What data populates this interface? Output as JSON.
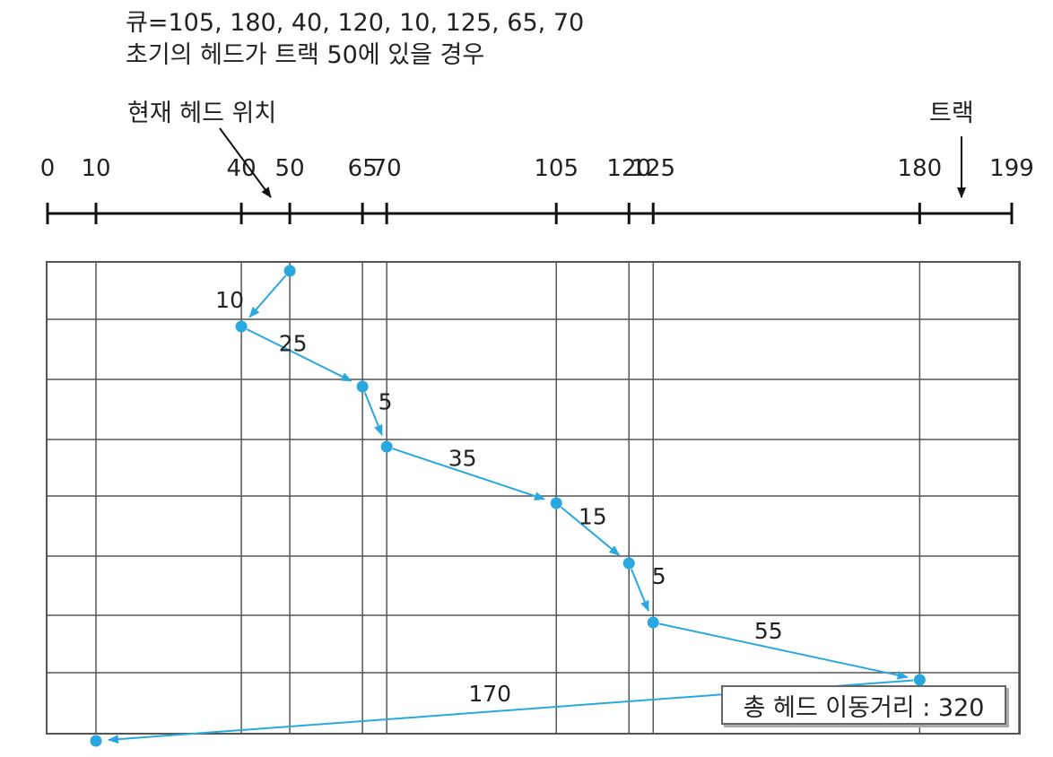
{
  "header": {
    "queue_text": "큐=105, 180, 40, 120, 10, 125, 65, 70",
    "initial_text": "초기의 헤드가 트랙 50에 있을 경우"
  },
  "labels": {
    "current_head": "현재 헤드 위치",
    "track": "트랙"
  },
  "track_axis": {
    "ticks": [
      0,
      10,
      40,
      50,
      65,
      70,
      105,
      120,
      125,
      180,
      199
    ],
    "tick_labels": [
      "0",
      "10",
      "40",
      "50",
      "65",
      "70",
      "105",
      "120",
      "125",
      "180",
      "199"
    ],
    "min": 0,
    "max": 199
  },
  "head_path": [
    50,
    40,
    65,
    70,
    105,
    120,
    125,
    180,
    10
  ],
  "moves": [
    "10",
    "25",
    "5",
    "35",
    "15",
    "5",
    "55",
    "170"
  ],
  "total": {
    "label": "총 헤드 이동거리 : 320"
  },
  "colors": {
    "path": "#29a8e0",
    "grid": "#555555",
    "axis": "#111111"
  }
}
